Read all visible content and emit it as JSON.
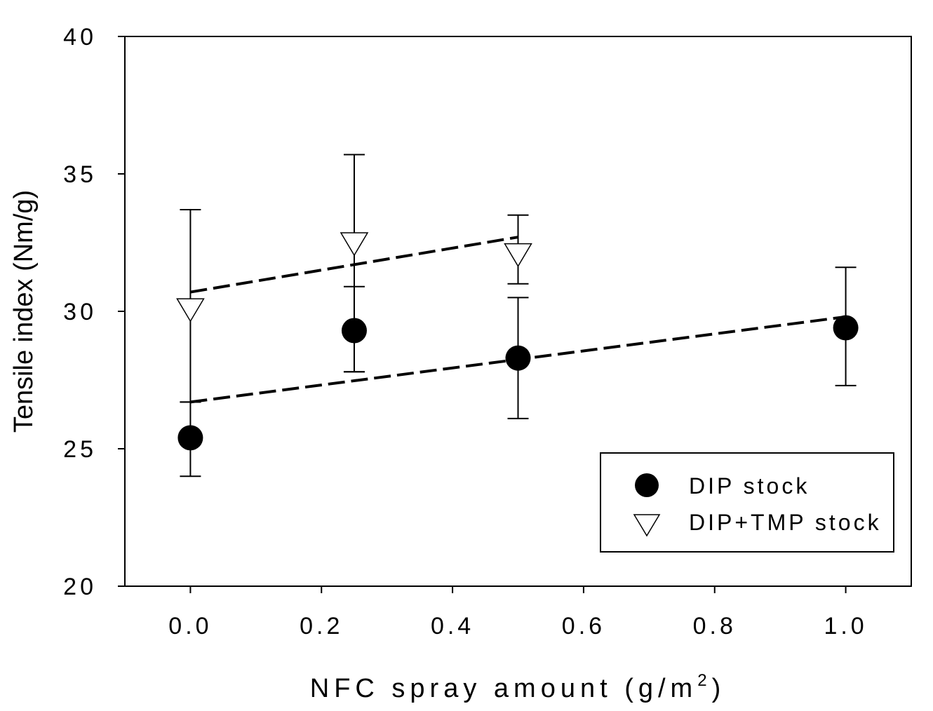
{
  "chart_data": {
    "type": "scatter",
    "title": "",
    "xlabel": "NFC spray amount (g/m",
    "xlabel_sup": "2",
    "xlabel_close": ")",
    "ylabel": "Tensile index (Nm/g)",
    "xlim": [
      -0.1,
      1.1
    ],
    "ylim": [
      20,
      40
    ],
    "x_ticks": [
      0.0,
      0.2,
      0.4,
      0.6,
      0.8,
      1.0
    ],
    "x_tick_labels": [
      "0.0",
      "0.2",
      "0.4",
      "0.6",
      "0.8",
      "1.0"
    ],
    "y_ticks": [
      20,
      25,
      30,
      35,
      40
    ],
    "y_tick_labels": [
      "20",
      "25",
      "30",
      "35",
      "40"
    ],
    "grid": false,
    "legend_position": "bottom-right",
    "series": [
      {
        "name": "DIP stock",
        "marker": "circle-filled",
        "color": "#000000",
        "x": [
          0.0,
          0.25,
          0.5,
          1.0
        ],
        "y": [
          25.4,
          29.3,
          28.3,
          29.4
        ],
        "err_low": [
          24.0,
          27.8,
          26.1,
          27.3
        ],
        "err_high": [
          26.7,
          30.9,
          30.5,
          31.6
        ],
        "trend": {
          "x": [
            0.0,
            1.0
          ],
          "y": [
            26.7,
            29.8
          ]
        }
      },
      {
        "name": "DIP+TMP stock",
        "marker": "triangle-down-open",
        "color": "#000000",
        "x": [
          0.0,
          0.25,
          0.5
        ],
        "y": [
          30.1,
          32.5,
          32.1
        ],
        "err_low": [
          26.7,
          27.8,
          31.0
        ],
        "err_high": [
          33.7,
          35.7,
          33.5
        ],
        "trend": {
          "x": [
            0.0,
            0.5
          ],
          "y": [
            30.7,
            32.7
          ]
        }
      }
    ]
  }
}
